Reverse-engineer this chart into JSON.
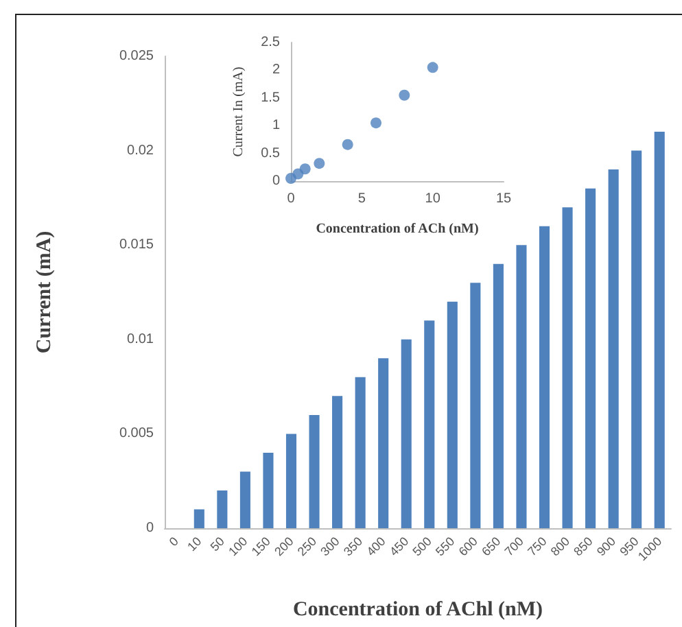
{
  "chart_data": [
    {
      "type": "bar",
      "xlabel": "Concentration of AChl (nM)",
      "ylabel": "Current (mA)",
      "categories": [
        "0",
        "10",
        "50",
        "100",
        "150",
        "200",
        "250",
        "300",
        "350",
        "400",
        "450",
        "500",
        "550",
        "600",
        "650",
        "700",
        "750",
        "800",
        "850",
        "900",
        "950",
        "1000"
      ],
      "values": [
        0,
        0.001,
        0.002,
        0.003,
        0.004,
        0.005,
        0.006,
        0.007,
        0.008,
        0.009,
        0.01,
        0.011,
        0.012,
        0.013,
        0.014,
        0.015,
        0.016,
        0.017,
        0.018,
        0.019,
        0.02,
        0.021
      ],
      "color": "#4f81bd",
      "ylim": [
        0,
        0.025
      ],
      "yticks": [
        0,
        0.005,
        0.01,
        0.015,
        0.02,
        0.025
      ]
    },
    {
      "type": "scatter",
      "xlabel": "Concentration of ACh (nM)",
      "ylabel": "Current In (mA)",
      "x": [
        0,
        0.5,
        1,
        2,
        4,
        6,
        8,
        10
      ],
      "values": [
        0.05,
        0.13,
        0.22,
        0.32,
        0.66,
        1.05,
        1.55,
        2.05
      ],
      "color": "#4f81bd",
      "marker": "circle",
      "xlim": [
        0,
        15
      ],
      "xticks": [
        0,
        5,
        10,
        15
      ],
      "ylim": [
        0,
        2.5
      ],
      "yticks": [
        0,
        0.5,
        1,
        1.5,
        2,
        2.5
      ]
    }
  ]
}
